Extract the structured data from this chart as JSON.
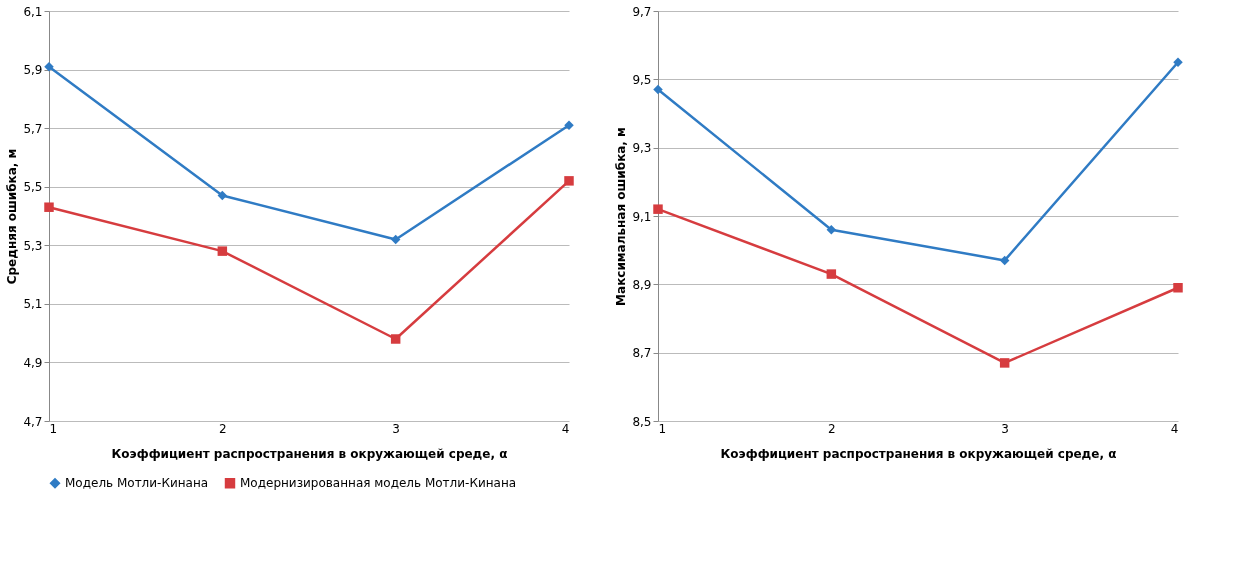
{
  "chart_data": [
    {
      "type": "line",
      "xlabel": "Коэффициент  распространения  в окружающей  среде, α",
      "ylabel": "Средняя ошибка, м",
      "x": [
        1,
        2,
        3,
        4
      ],
      "xlim": [
        1,
        4
      ],
      "xticks": [
        1,
        2,
        3,
        4
      ],
      "ylim": [
        4.7,
        6.1
      ],
      "yticks": [
        {
          "value": 4.7,
          "label": "4,7"
        },
        {
          "value": 4.9,
          "label": "4,9"
        },
        {
          "value": 5.1,
          "label": "5,1"
        },
        {
          "value": 5.3,
          "label": "5,3"
        },
        {
          "value": 5.5,
          "label": "5,5"
        },
        {
          "value": 5.7,
          "label": "5,7"
        },
        {
          "value": 5.9,
          "label": "5,9"
        },
        {
          "value": 6.1,
          "label": "6,1"
        }
      ],
      "grid": "y",
      "legend": "bottom",
      "line_style": "solid",
      "series": [
        {
          "name": "Модель  Мотли-Кинана",
          "color": "#2f7bc4",
          "marker": "diamond",
          "values": [
            5.91,
            5.47,
            5.32,
            5.71
          ]
        },
        {
          "name": "Модернизированная модель  Мотли-Кинана",
          "color": "#d63c3f",
          "marker": "square",
          "values": [
            5.43,
            5.28,
            4.98,
            5.52
          ]
        }
      ]
    },
    {
      "type": "line",
      "xlabel": "Коэффициент  распространения  в окружающей  среде, α",
      "ylabel": "Максимальная  ошибка, м",
      "x": [
        1,
        2,
        3,
        4
      ],
      "xlim": [
        1,
        4
      ],
      "xticks": [
        1,
        2,
        3,
        4
      ],
      "ylim": [
        8.5,
        9.7
      ],
      "yticks": [
        {
          "value": 8.5,
          "label": "8,5"
        },
        {
          "value": 8.7,
          "label": "8,7"
        },
        {
          "value": 8.9,
          "label": "8,9"
        },
        {
          "value": 9.1,
          "label": "9,1"
        },
        {
          "value": 9.3,
          "label": "9,3"
        },
        {
          "value": 9.5,
          "label": "9,5"
        },
        {
          "value": 9.7,
          "label": "9,7"
        }
      ],
      "grid": "y",
      "legend": "bottom",
      "line_style": "solid",
      "series": [
        {
          "name": "Модель  Мотли-Кинана",
          "color": "#2f7bc4",
          "marker": "diamond",
          "values": [
            9.47,
            9.06,
            8.97,
            9.55
          ]
        },
        {
          "name": "Модернизированная модель  Мотли-Кинана",
          "color": "#d63c3f",
          "marker": "square",
          "values": [
            9.12,
            8.93,
            8.67,
            8.89
          ]
        }
      ]
    }
  ]
}
